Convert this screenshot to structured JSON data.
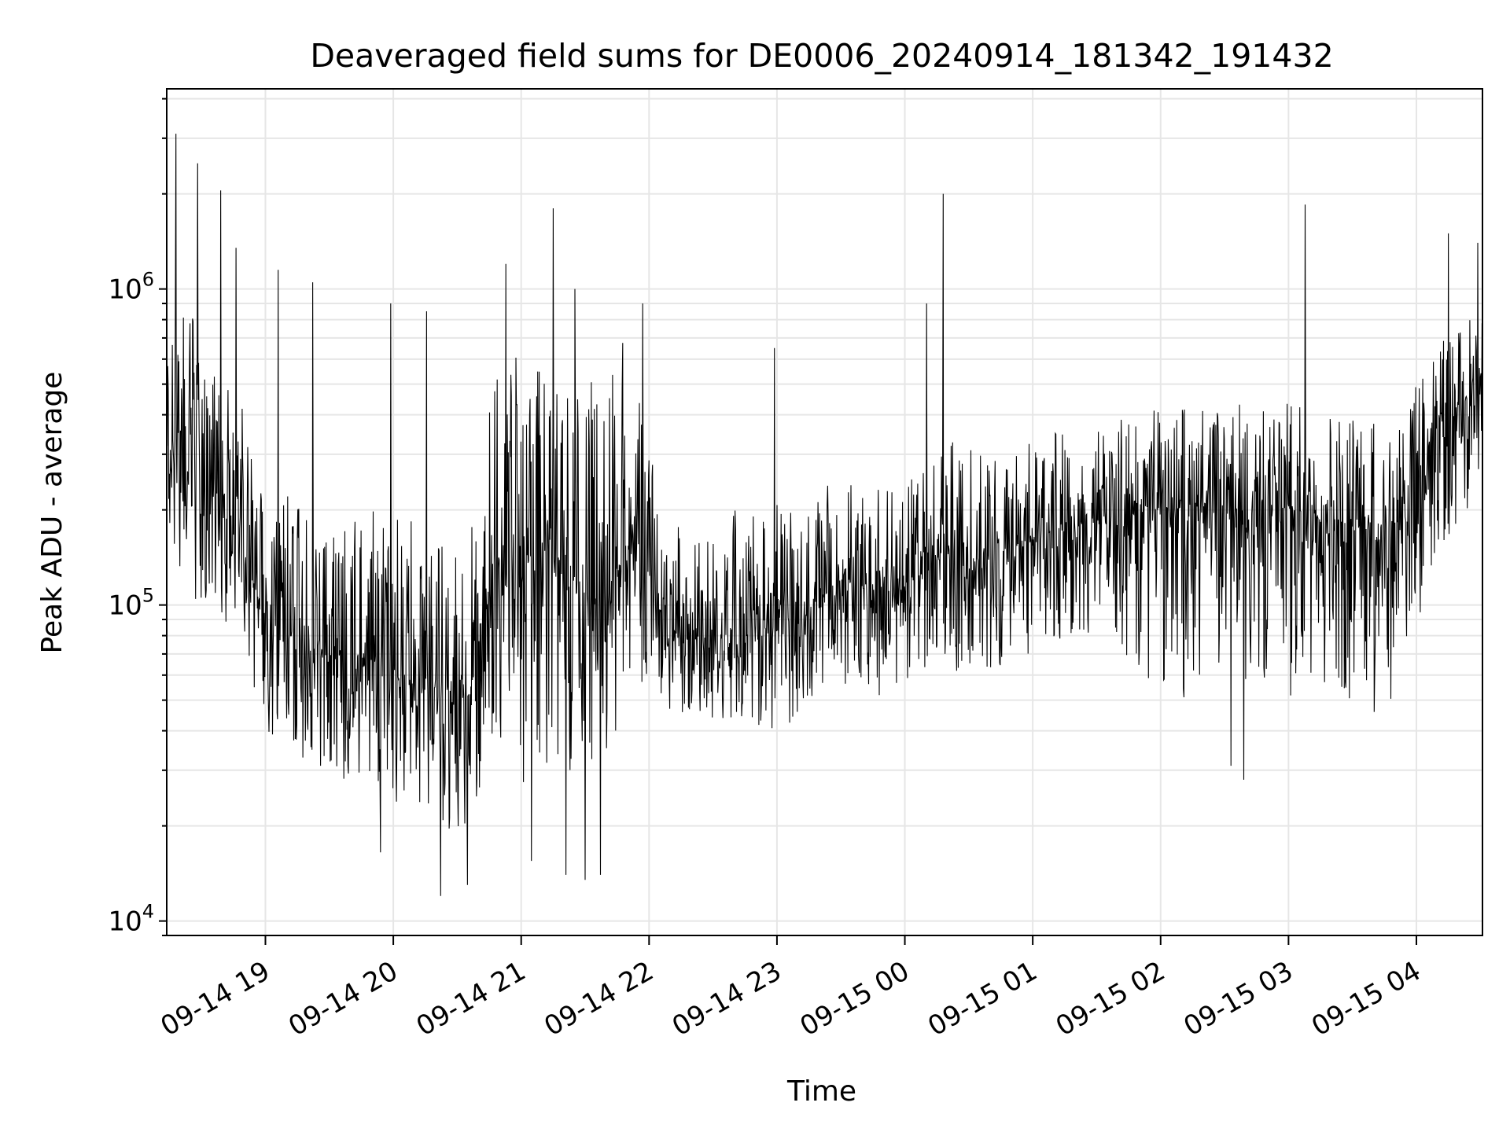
{
  "chart_data": {
    "type": "line",
    "title": "Deaveraged field sums for DE0006_20240914_181342_191432",
    "xlabel": "Time",
    "ylabel": "Peak ADU - average",
    "x_domain": [
      "09-14 18:13:42",
      "09-15 04:31:00"
    ],
    "y_scale": "log",
    "ylim": [
      9000,
      4300000
    ],
    "grid": true,
    "legend": "none",
    "line_color": "#000000",
    "x_ticks": [
      "09-14 19",
      "09-14 20",
      "09-14 21",
      "09-14 22",
      "09-14 23",
      "09-15 00",
      "09-15 01",
      "09-15 02",
      "09-15 03",
      "09-15 04"
    ],
    "y_ticks": [
      {
        "value": 10000,
        "base": "10",
        "exp": "4"
      },
      {
        "value": 100000,
        "base": "10",
        "exp": "5"
      },
      {
        "value": 1000000,
        "base": "10",
        "exp": "6"
      }
    ],
    "series": [
      {
        "time_hours_of_day": [
          18.23,
          18.4,
          18.6,
          18.8,
          19.0,
          19.2,
          19.4,
          19.6,
          19.8,
          20.0,
          20.2,
          20.4,
          20.6,
          20.75,
          20.9,
          21.0,
          21.2,
          21.4,
          21.6,
          21.75,
          21.9,
          22.0,
          22.2,
          22.4,
          22.6,
          22.8,
          23.0,
          23.2,
          23.4,
          23.6,
          23.8,
          24.0,
          24.2,
          24.3,
          24.4,
          24.6,
          24.8,
          25.0,
          25.2,
          25.4,
          25.6,
          25.8,
          26.0,
          26.2,
          26.4,
          26.6,
          26.8,
          27.0,
          27.2,
          27.4,
          27.6,
          27.8,
          28.0,
          28.2,
          28.4,
          28.52
        ],
        "median": [
          320000,
          260000,
          220000,
          160000,
          90000,
          80000,
          70000,
          72000,
          68000,
          60000,
          55000,
          50000,
          52000,
          120000,
          160000,
          130000,
          150000,
          120000,
          100000,
          130000,
          170000,
          110000,
          80000,
          80000,
          80000,
          80000,
          85000,
          95000,
          110000,
          115000,
          110000,
          115000,
          130000,
          150000,
          140000,
          140000,
          150000,
          160000,
          175000,
          185000,
          190000,
          195000,
          200000,
          205000,
          205000,
          195000,
          195000,
          200000,
          195000,
          185000,
          175000,
          175000,
          250000,
          400000,
          460000,
          560000
        ],
        "low": [
          180000,
          100000,
          90000,
          80000,
          40000,
          35000,
          30000,
          28000,
          26000,
          24000,
          22000,
          18000,
          20000,
          35000,
          40000,
          20000,
          30000,
          30000,
          25000,
          40000,
          55000,
          45000,
          45000,
          45000,
          42000,
          40000,
          40000,
          45000,
          55000,
          55000,
          50000,
          55000,
          60000,
          65000,
          60000,
          62000,
          65000,
          70000,
          78000,
          80000,
          85000,
          60000,
          50000,
          50000,
          55000,
          55000,
          50000,
          50000,
          50000,
          45000,
          40000,
          50000,
          80000,
          150000,
          200000,
          260000
        ],
        "high": [
          700000,
          900000,
          600000,
          450000,
          250000,
          220000,
          200000,
          180000,
          200000,
          200000,
          180000,
          160000,
          200000,
          700000,
          800000,
          500000,
          600000,
          600000,
          600000,
          700000,
          700000,
          300000,
          200000,
          200000,
          200000,
          200000,
          210000,
          230000,
          250000,
          240000,
          240000,
          240000,
          280000,
          320000,
          330000,
          300000,
          300000,
          330000,
          360000,
          380000,
          390000,
          400000,
          430000,
          440000,
          440000,
          440000,
          420000,
          440000,
          420000,
          410000,
          400000,
          400000,
          500000,
          700000,
          800000,
          900000
        ]
      }
    ],
    "spikes": [
      {
        "t": 18.3,
        "v": 3100000
      },
      {
        "t": 18.47,
        "v": 2500000
      },
      {
        "t": 18.65,
        "v": 2050000
      },
      {
        "t": 18.77,
        "v": 1350000
      },
      {
        "t": 19.1,
        "v": 1150000
      },
      {
        "t": 19.37,
        "v": 1050000
      },
      {
        "t": 19.98,
        "v": 900000
      },
      {
        "t": 20.26,
        "v": 850000
      },
      {
        "t": 20.88,
        "v": 1200000
      },
      {
        "t": 21.25,
        "v": 1800000
      },
      {
        "t": 21.42,
        "v": 1000000
      },
      {
        "t": 21.95,
        "v": 900000
      },
      {
        "t": 22.98,
        "v": 650000
      },
      {
        "t": 24.17,
        "v": 900000
      },
      {
        "t": 24.3,
        "v": 2000000
      },
      {
        "t": 27.13,
        "v": 1850000
      },
      {
        "t": 28.25,
        "v": 1500000
      },
      {
        "t": 28.48,
        "v": 1400000
      }
    ],
    "dips": [
      {
        "t": 20.37,
        "v": 12000
      },
      {
        "t": 20.58,
        "v": 13000
      },
      {
        "t": 21.08,
        "v": 15500
      },
      {
        "t": 21.35,
        "v": 14000
      },
      {
        "t": 21.5,
        "v": 13500
      },
      {
        "t": 21.62,
        "v": 14000
      },
      {
        "t": 19.9,
        "v": 16500
      },
      {
        "t": 26.65,
        "v": 28000
      },
      {
        "t": 26.55,
        "v": 31000
      }
    ]
  }
}
